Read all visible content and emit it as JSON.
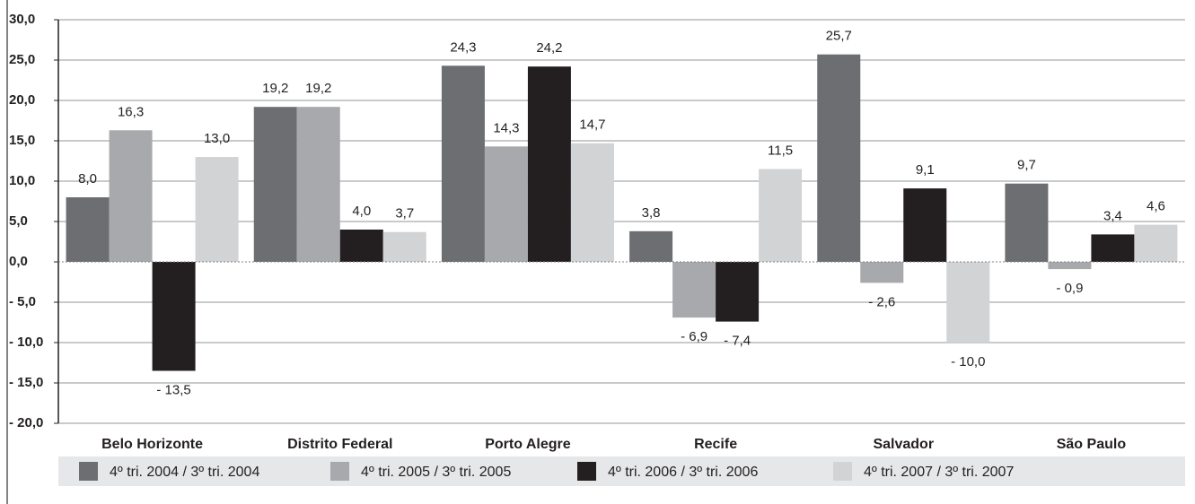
{
  "chart_data": {
    "type": "bar",
    "categories": [
      "Belo Horizonte",
      "Distrito Federal",
      "Porto Alegre",
      "Recife",
      "Salvador",
      "São Paulo"
    ],
    "series": [
      {
        "name": "4º tri. 2004 / 3º tri. 2004",
        "color": "#6d6e71",
        "values": [
          8.0,
          19.2,
          24.3,
          3.8,
          25.7,
          9.7
        ],
        "value_labels": [
          "8,0",
          "19,2",
          "24,3",
          "3,8",
          "25,7",
          "9,7"
        ]
      },
      {
        "name": "4º tri. 2005 / 3º tri. 2005",
        "color": "#a7a9ac",
        "values": [
          16.3,
          19.2,
          14.3,
          -6.9,
          -2.6,
          -0.9
        ],
        "value_labels": [
          "16,3",
          "19,2",
          "14,3",
          "- 6,9",
          "- 2,6",
          "- 0,9"
        ]
      },
      {
        "name": "4º tri. 2006 / 3º tri. 2006",
        "color": "#231f20",
        "values": [
          -13.5,
          4.0,
          24.2,
          -7.4,
          9.1,
          3.4
        ],
        "value_labels": [
          "- 13,5",
          "4,0",
          "24,2",
          "- 7,4",
          "9,1",
          "3,4"
        ]
      },
      {
        "name": "4º tri. 2007 / 3º tri. 2007",
        "color": "#d1d3d4",
        "values": [
          13.0,
          3.7,
          14.7,
          11.5,
          -10.0,
          4.6
        ],
        "value_labels": [
          "13,0",
          "3,7",
          "14,7",
          "11,5",
          "- 10,0",
          "4,6"
        ]
      }
    ],
    "ylim": [
      -20,
      30
    ],
    "yticks": [
      {
        "value": 30,
        "label": "30,0"
      },
      {
        "value": 25,
        "label": "25,0"
      },
      {
        "value": 20,
        "label": "20,0"
      },
      {
        "value": 15,
        "label": "15,0"
      },
      {
        "value": 10,
        "label": "10,0"
      },
      {
        "value": 5,
        "label": "5,0"
      },
      {
        "value": 0,
        "label": "0,0"
      },
      {
        "value": -5,
        "label": "- 5,0"
      },
      {
        "value": -10,
        "label": "- 10,0"
      },
      {
        "value": -15,
        "label": "- 15,0"
      },
      {
        "value": -20,
        "label": "- 20,0"
      }
    ],
    "grid": true,
    "legend": "bottom"
  }
}
